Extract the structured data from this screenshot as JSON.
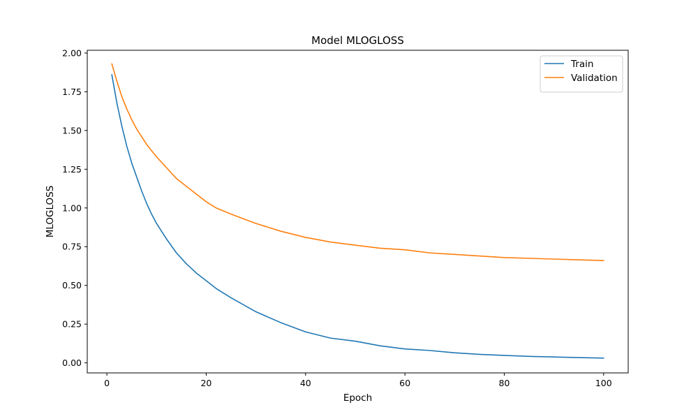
{
  "chart_data": {
    "type": "line",
    "title": "Model MLOGLOSS",
    "xlabel": "Epoch",
    "ylabel": "MLOGLOSS",
    "xlim": [
      -3.95,
      104.95
    ],
    "ylim": [
      -0.0648,
      2.0178
    ],
    "xticks": [
      0,
      20,
      40,
      60,
      80,
      100
    ],
    "yticks": [
      0.0,
      0.25,
      0.5,
      0.75,
      1.0,
      1.25,
      1.5,
      1.75,
      2.0
    ],
    "grid": false,
    "legend": "top-right",
    "series": [
      {
        "name": "Train",
        "color": "#1f77b4",
        "x": [
          1,
          2,
          3,
          4,
          5,
          6,
          7,
          8,
          9,
          10,
          12,
          14,
          16,
          18,
          20,
          22,
          25,
          30,
          35,
          40,
          45,
          50,
          55,
          60,
          65,
          70,
          75,
          80,
          85,
          90,
          95,
          100
        ],
        "values": [
          1.86,
          1.68,
          1.53,
          1.4,
          1.29,
          1.2,
          1.11,
          1.03,
          0.96,
          0.9,
          0.8,
          0.71,
          0.64,
          0.58,
          0.53,
          0.48,
          0.42,
          0.33,
          0.26,
          0.2,
          0.16,
          0.14,
          0.11,
          0.09,
          0.08,
          0.065,
          0.055,
          0.048,
          0.042,
          0.038,
          0.034,
          0.031
        ]
      },
      {
        "name": "Validation",
        "color": "#ff7f0e",
        "x": [
          1,
          2,
          3,
          4,
          5,
          6,
          7,
          8,
          9,
          10,
          12,
          14,
          16,
          18,
          20,
          22,
          25,
          30,
          35,
          40,
          45,
          50,
          55,
          60,
          65,
          70,
          75,
          80,
          85,
          90,
          95,
          100
        ],
        "values": [
          1.93,
          1.82,
          1.72,
          1.64,
          1.57,
          1.51,
          1.46,
          1.41,
          1.37,
          1.33,
          1.26,
          1.19,
          1.14,
          1.09,
          1.04,
          1.0,
          0.96,
          0.9,
          0.85,
          0.81,
          0.78,
          0.76,
          0.74,
          0.73,
          0.71,
          0.7,
          0.69,
          0.68,
          0.675,
          0.67,
          0.665,
          0.66
        ]
      }
    ]
  }
}
